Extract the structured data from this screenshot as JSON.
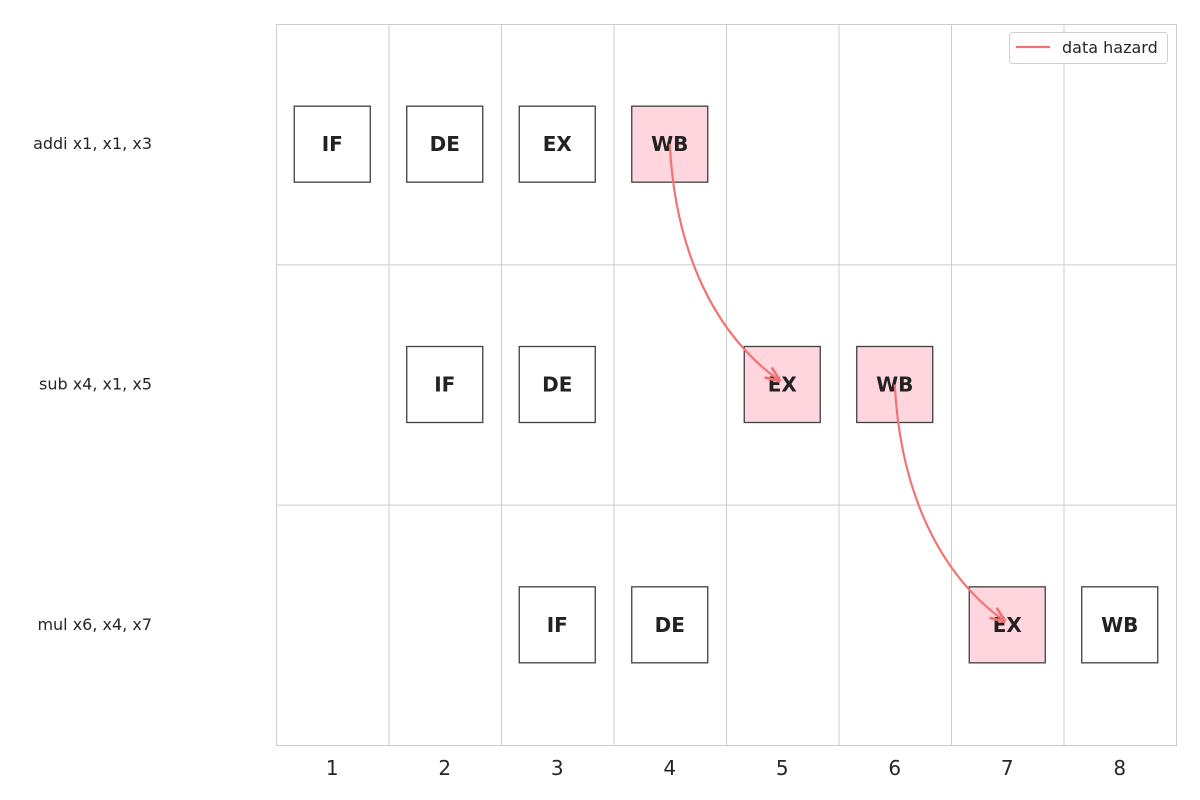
{
  "cycles": [
    "1",
    "2",
    "3",
    "4",
    "5",
    "6",
    "7",
    "8"
  ],
  "instructions": [
    {
      "label": "addi x1, x1, x3",
      "stages": [
        {
          "name": "IF",
          "cycle": 1,
          "hazard": false
        },
        {
          "name": "DE",
          "cycle": 2,
          "hazard": false
        },
        {
          "name": "EX",
          "cycle": 3,
          "hazard": false
        },
        {
          "name": "WB",
          "cycle": 4,
          "hazard": true
        }
      ]
    },
    {
      "label": "sub x4, x1, x5",
      "stages": [
        {
          "name": "IF",
          "cycle": 2,
          "hazard": false
        },
        {
          "name": "DE",
          "cycle": 3,
          "hazard": false
        },
        {
          "name": "EX",
          "cycle": 5,
          "hazard": true
        },
        {
          "name": "WB",
          "cycle": 6,
          "hazard": true
        }
      ]
    },
    {
      "label": "mul x6, x4, x7",
      "stages": [
        {
          "name": "IF",
          "cycle": 3,
          "hazard": false
        },
        {
          "name": "DE",
          "cycle": 4,
          "hazard": false
        },
        {
          "name": "EX",
          "cycle": 7,
          "hazard": true
        },
        {
          "name": "WB",
          "cycle": 8,
          "hazard": false
        }
      ]
    }
  ],
  "hazards": [
    {
      "from_instr": 0,
      "from_cycle": 4,
      "to_instr": 1,
      "to_cycle": 5
    },
    {
      "from_instr": 1,
      "from_cycle": 6,
      "to_instr": 2,
      "to_cycle": 7
    }
  ],
  "legend": {
    "label": "data hazard",
    "placement": "top-right"
  },
  "colors": {
    "hazard_line": "#f37373",
    "hazard_fill": "#ffd6de",
    "box_edge": "#404040",
    "grid": "#cccccc",
    "text": "#222222"
  }
}
